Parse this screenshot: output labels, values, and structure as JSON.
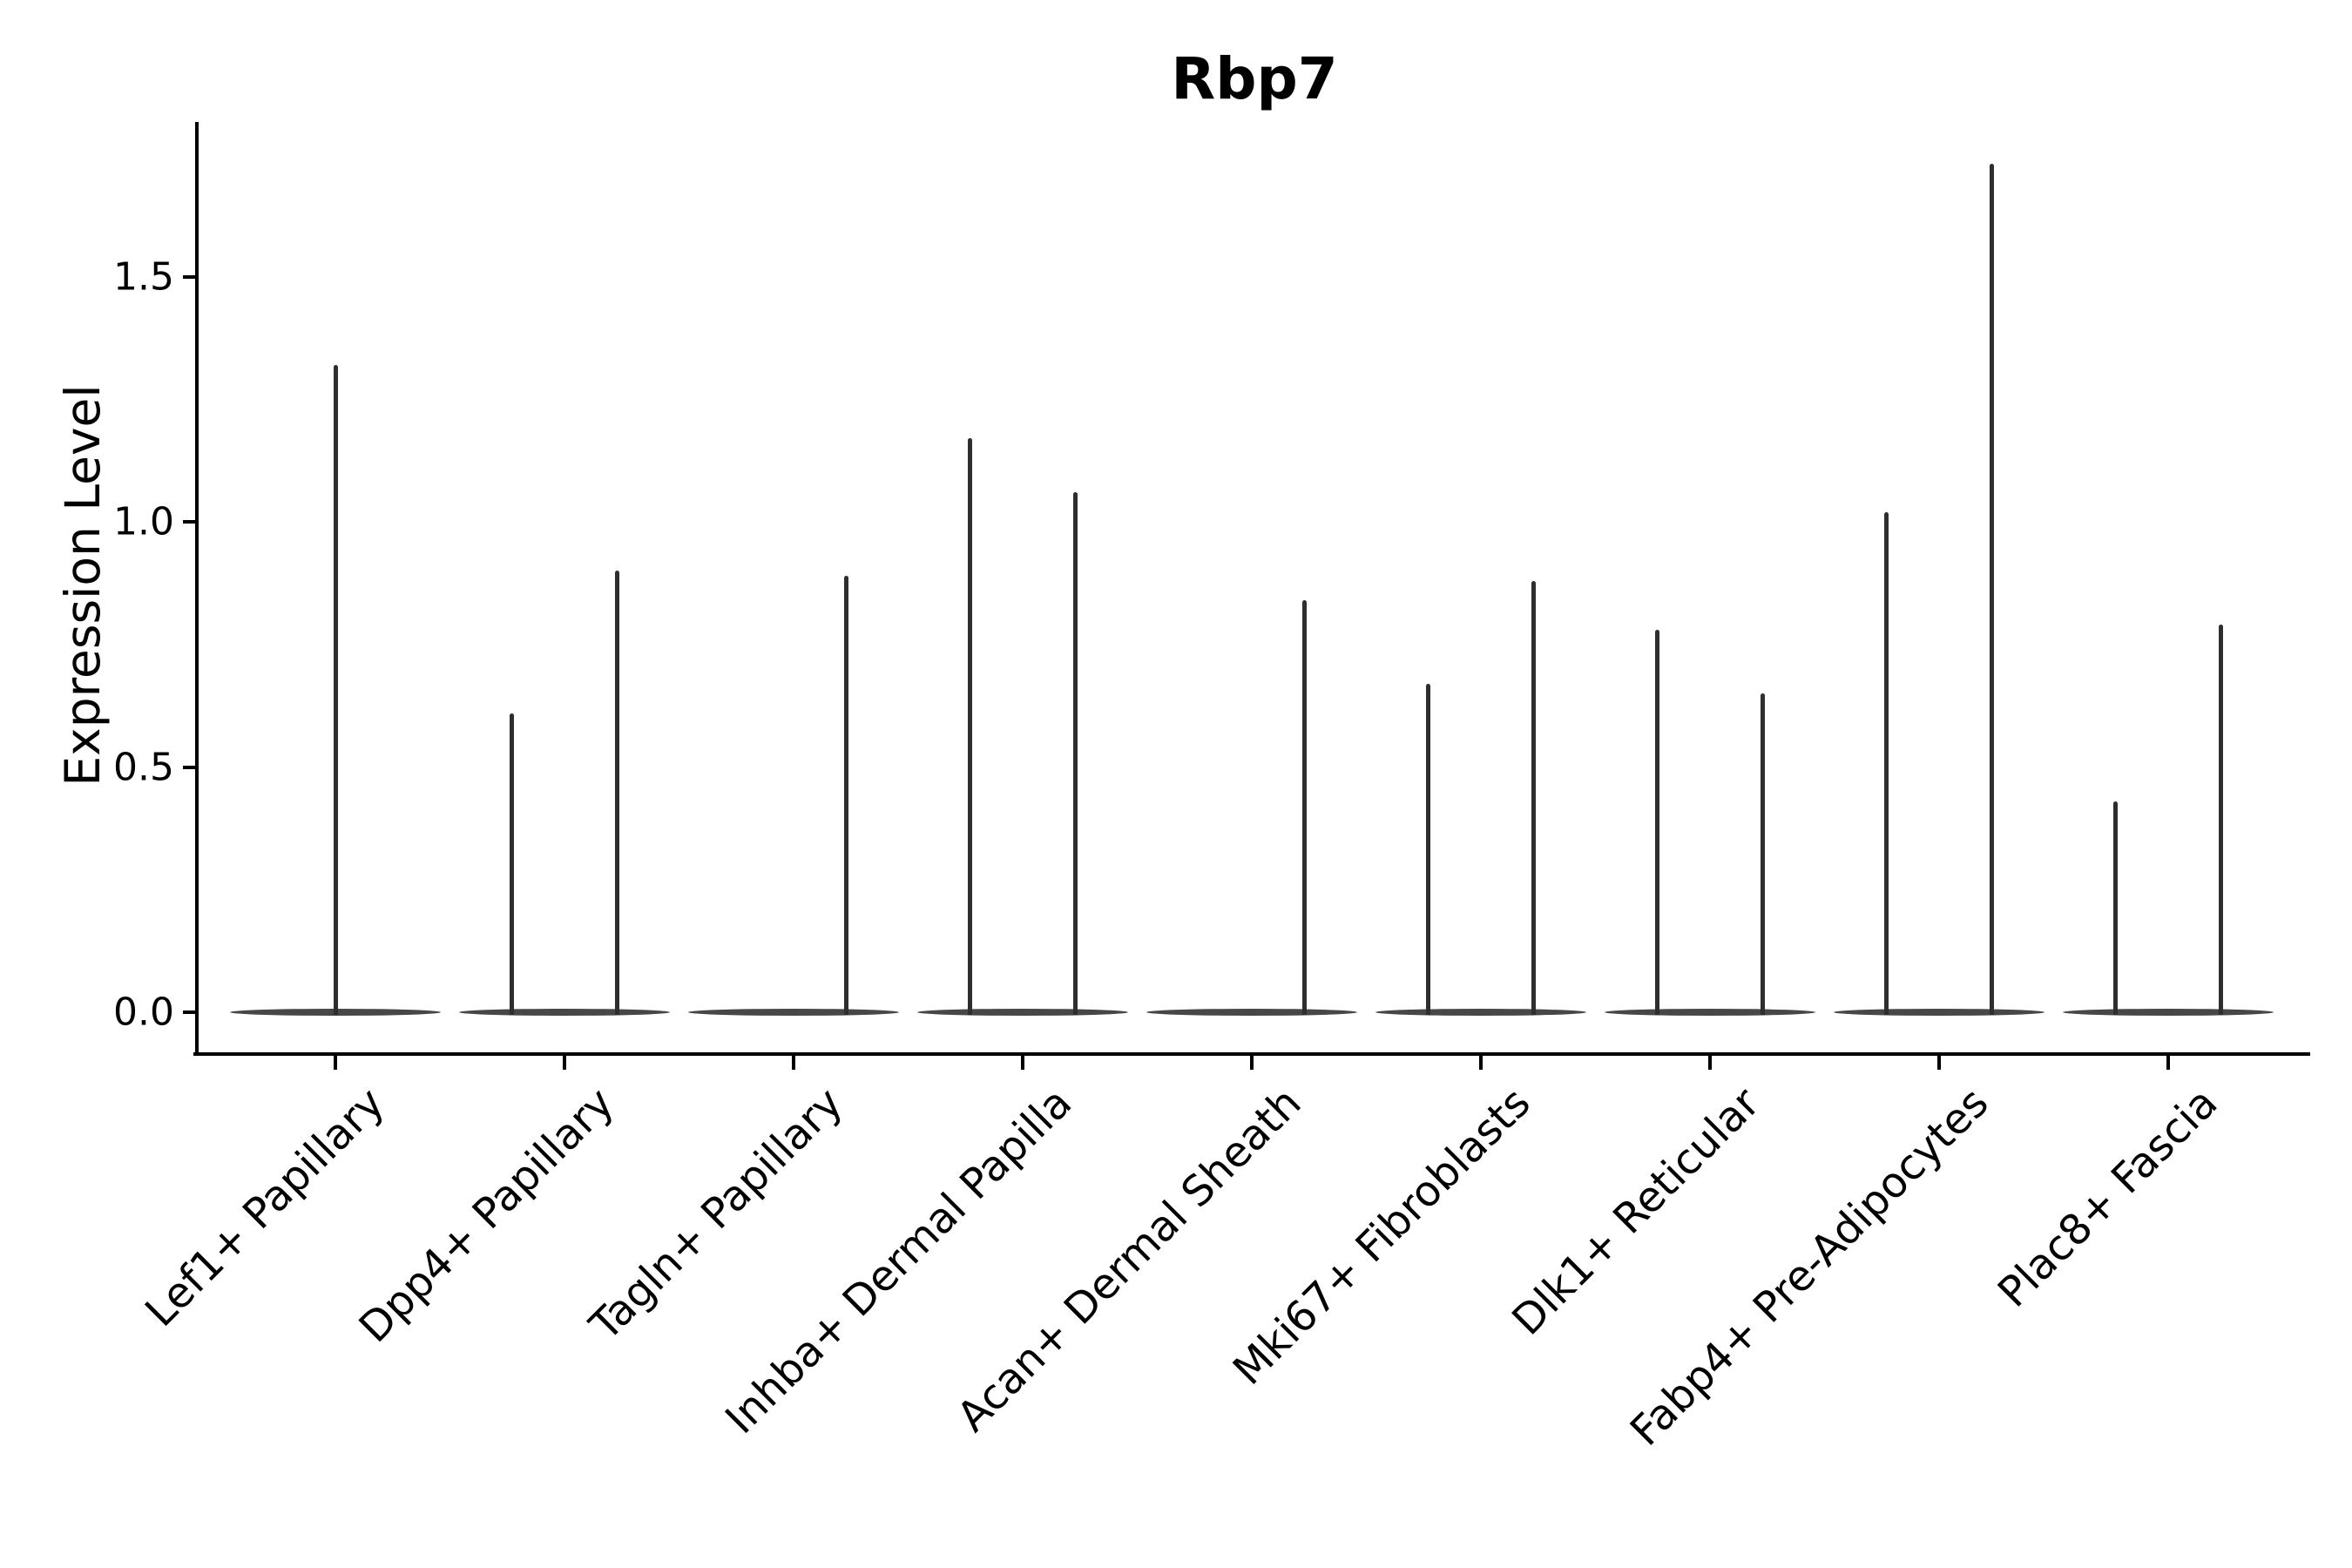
{
  "chart_data": {
    "type": "violin",
    "title": "Rbp7",
    "xlabel": "",
    "ylabel": "Expression Level",
    "ylim": [
      0,
      1.82
    ],
    "yticks": [
      {
        "value": 0.0,
        "label": "0.0"
      },
      {
        "value": 0.5,
        "label": "0.5"
      },
      {
        "value": 1.0,
        "label": "1.0"
      },
      {
        "value": 1.5,
        "label": "1.5"
      }
    ],
    "grid": false,
    "legend": "none",
    "categories": [
      "Lef1+ Papillary",
      "Dpp4+ Papillary",
      "Tagln+ Papillary",
      "Inhba+ Dermal Papilla",
      "Acan+ Dermal Sheath",
      "Mki67+ Fibroblasts",
      "Dlk1+ Reticular",
      "Fabp4+ Pre-Adipocytes",
      "Plac8+ Fascia"
    ],
    "violin_style": "narrow spike above flat zero-baseline lens; black outline, no fill",
    "violins": [
      {
        "category": "Lef1+ Papillary",
        "halves": [
          {
            "position": "full",
            "max_expression": 1.32
          }
        ]
      },
      {
        "category": "Dpp4+ Papillary",
        "halves": [
          {
            "position": "left",
            "max_expression": 0.61
          },
          {
            "position": "right",
            "max_expression": 0.9
          }
        ]
      },
      {
        "category": "Tagln+ Papillary",
        "halves": [
          {
            "position": "left",
            "max_expression": 0.0
          },
          {
            "position": "right",
            "max_expression": 0.89
          }
        ]
      },
      {
        "category": "Inhba+ Dermal Papilla",
        "halves": [
          {
            "position": "left",
            "max_expression": 1.17
          },
          {
            "position": "right",
            "max_expression": 1.06
          }
        ]
      },
      {
        "category": "Acan+ Dermal Sheath",
        "halves": [
          {
            "position": "left",
            "max_expression": 0.0
          },
          {
            "position": "right",
            "max_expression": 0.84
          }
        ]
      },
      {
        "category": "Mki67+ Fibroblasts",
        "halves": [
          {
            "position": "left",
            "max_expression": 0.67
          },
          {
            "position": "right",
            "max_expression": 0.88
          }
        ]
      },
      {
        "category": "Dlk1+ Reticular",
        "halves": [
          {
            "position": "left",
            "max_expression": 0.78
          },
          {
            "position": "right",
            "max_expression": 0.65
          }
        ]
      },
      {
        "category": "Fabp4+ Pre-Adipocytes",
        "halves": [
          {
            "position": "left",
            "max_expression": 1.02
          },
          {
            "position": "right",
            "max_expression": 1.73
          }
        ]
      },
      {
        "category": "Plac8+ Fascia",
        "halves": [
          {
            "position": "left",
            "max_expression": 0.43
          },
          {
            "position": "right",
            "max_expression": 0.79
          }
        ]
      }
    ],
    "baseline_value": 0.0,
    "colors": {
      "background": "#ffffff",
      "axis": "#000000",
      "text": "#000000",
      "violin_spike": "#2e2e2e",
      "violin_baseline": "#474747"
    }
  }
}
